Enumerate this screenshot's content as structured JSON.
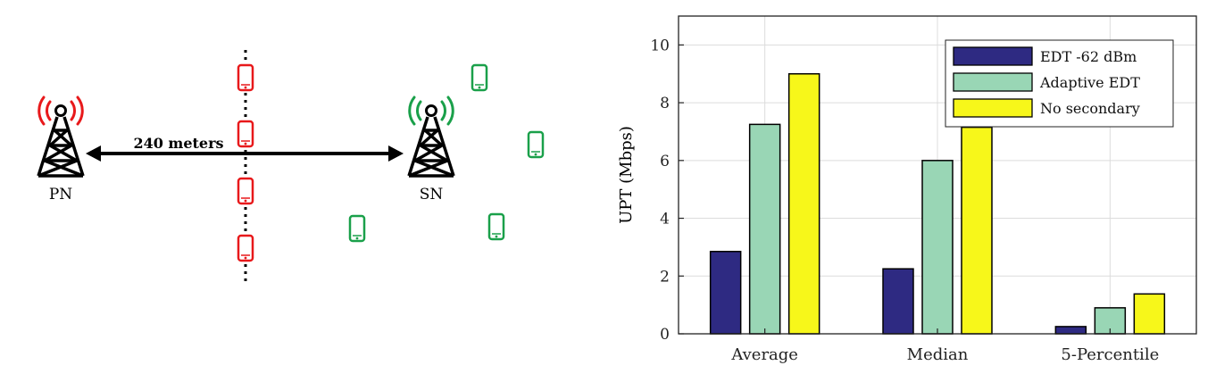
{
  "diagram": {
    "distance_label": "240 meters",
    "primary_node_label": "PN",
    "secondary_node_label": "SN",
    "colors": {
      "primary_signal": "#e8191b",
      "secondary_signal": "#1aa04a",
      "red_ue": "#e8191b",
      "green_ue": "#1aa04a",
      "tower": "#000000"
    }
  },
  "chart_data": {
    "type": "bar",
    "categories": [
      "Average",
      "Median",
      "5-Percentile"
    ],
    "series": [
      {
        "name": "EDT -62 dBm",
        "color": "#2e2a82",
        "values": [
          2.85,
          2.25,
          0.25
        ]
      },
      {
        "name": "Adaptive EDT",
        "color": "#99d6b5",
        "values": [
          7.25,
          6.0,
          0.9
        ]
      },
      {
        "name": "No secondary",
        "color": "#f7f71a",
        "values": [
          9.0,
          7.15,
          1.38
        ]
      }
    ],
    "xlabel": "",
    "ylabel": "UPT (Mbps)",
    "ylim": [
      0,
      11
    ],
    "yticks": [
      0,
      2,
      4,
      6,
      8,
      10
    ],
    "grid": true,
    "legend_position": "top-right"
  }
}
